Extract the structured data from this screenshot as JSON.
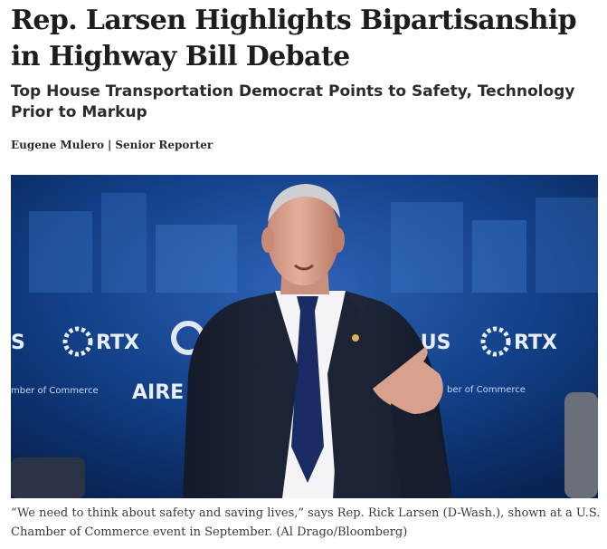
{
  "article": {
    "headline": "Rep. Larsen Highlights Bipartisanship in Highway Bill Debate",
    "subheadline": "Top House Transportation Democrat Points to Safety, Technology Prior to Markup",
    "byline": {
      "author": "Eugene Mulero",
      "separator": "|",
      "role": "Senior Reporter"
    },
    "photo": {
      "backdrop_text": {
        "left_fragment": "S",
        "rtx_left": "RTX",
        "bus": "BUS",
        "rtx_right": "RTX",
        "chamber_left": "mber of Commerce",
        "air": "AIRE",
        "chamber_right": "ber of Commerce"
      },
      "colors": {
        "backdrop": "#0d2f6a",
        "jacket": "#1c2436",
        "shirt": "#f4f4f6",
        "tie": "#1a2c63",
        "skin": "#d9a38f"
      }
    },
    "caption": "“We need to think about safety and saving lives,” says Rep. Rick Larsen (D-Wash.), shown at a U.S. Chamber of Commerce event in September. (Al Drago/Bloomberg)"
  }
}
